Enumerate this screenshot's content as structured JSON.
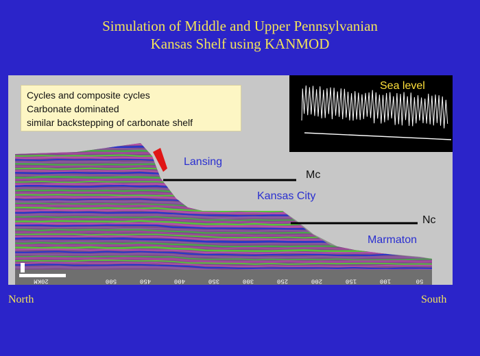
{
  "slide": {
    "title_line1": "Simulation of Middle and Upper Pennsylvanian",
    "title_line2": "Kansas Shelf using KANMOD",
    "left_label": "North",
    "right_label": "South"
  },
  "notes": [
    "Cycles and composite cycles",
    "Carbonate dominated",
    "similar backstepping of carbonate shelf"
  ],
  "inset": {
    "label": "Sea level"
  },
  "units": {
    "lansing": "Lansing",
    "kansas_city": "Kansas City",
    "marmaton": "Marmaton"
  },
  "markers": {
    "mc": "Mc",
    "nc": "Nc"
  },
  "axis": {
    "scale_bar": "20KM",
    "ticks": [
      "500",
      "450",
      "400",
      "350",
      "300",
      "250",
      "200",
      "150",
      "100",
      "50"
    ]
  },
  "colors": {
    "background": "#2b24c9",
    "title": "#f2e35a",
    "panel": "#c7c7c7",
    "layer_green": "#58c33b",
    "layer_magenta": "#b44fa8",
    "layer_blue": "#2a36c8",
    "unit_label": "#2a2fd0"
  }
}
